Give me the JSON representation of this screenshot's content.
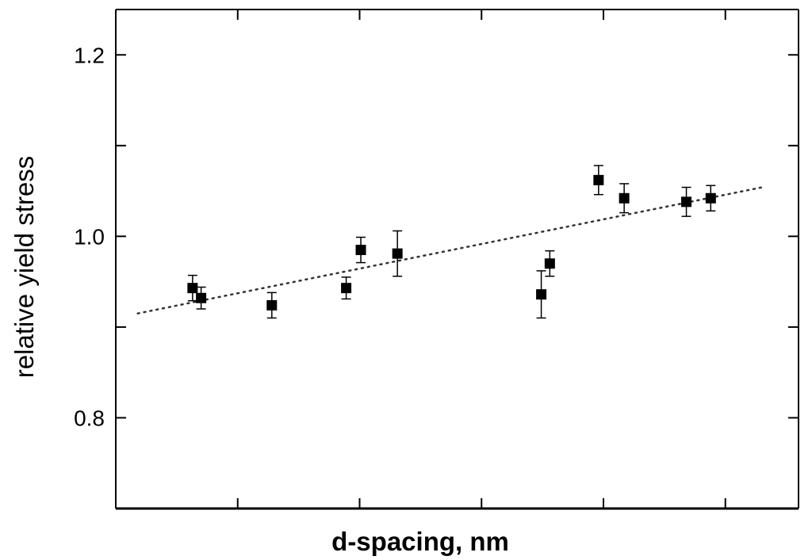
{
  "chart_data": {
    "type": "scatter",
    "title": "",
    "xlabel": "d-spacing, nm",
    "ylabel": "relative yield stress",
    "xlim": [
      0,
      5.6
    ],
    "ylim": [
      0.7,
      1.25
    ],
    "y_ticks": [
      {
        "value": 0.8,
        "label": "0.8"
      },
      {
        "value": 0.9,
        "label": ""
      },
      {
        "value": 1.0,
        "label": "1.0"
      },
      {
        "value": 1.1,
        "label": ""
      },
      {
        "value": 1.2,
        "label": "1.2"
      }
    ],
    "x_ticks": [
      {
        "value": 1,
        "label": ""
      },
      {
        "value": 2,
        "label": ""
      },
      {
        "value": 3,
        "label": ""
      },
      {
        "value": 4,
        "label": ""
      },
      {
        "value": 5,
        "label": ""
      }
    ],
    "grid": false,
    "legend": "none",
    "series": [
      {
        "marker": "square",
        "color": "#000000",
        "points": [
          {
            "x": 0.63,
            "y": 0.943,
            "err": 0.014
          },
          {
            "x": 0.7,
            "y": 0.932,
            "err": 0.012
          },
          {
            "x": 1.28,
            "y": 0.924,
            "err": 0.014
          },
          {
            "x": 1.89,
            "y": 0.943,
            "err": 0.012
          },
          {
            "x": 2.01,
            "y": 0.985,
            "err": 0.014
          },
          {
            "x": 2.31,
            "y": 0.981,
            "err": 0.025
          },
          {
            "x": 3.49,
            "y": 0.936,
            "err": 0.026
          },
          {
            "x": 3.56,
            "y": 0.97,
            "err": 0.014
          },
          {
            "x": 3.96,
            "y": 1.062,
            "err": 0.016
          },
          {
            "x": 4.17,
            "y": 1.042,
            "err": 0.016
          },
          {
            "x": 4.68,
            "y": 1.038,
            "err": 0.016
          },
          {
            "x": 4.88,
            "y": 1.042,
            "err": 0.014
          }
        ]
      }
    ],
    "fit_line": {
      "style": "dotted",
      "color": "#333333",
      "x": [
        0.18,
        5.3
      ],
      "y": [
        0.915,
        1.054
      ]
    }
  }
}
